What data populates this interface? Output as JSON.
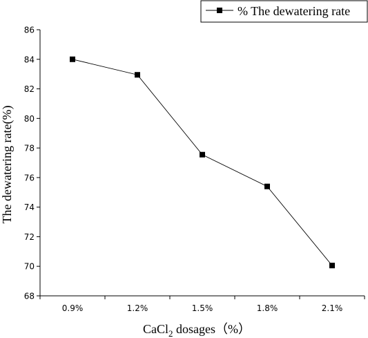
{
  "chart_data": {
    "type": "line",
    "categories": [
      "0.9%",
      "1.2%",
      "1.5%",
      "1.8%",
      "2.1%"
    ],
    "series": [
      {
        "name": "% The dewatering rate",
        "values": [
          84.0,
          82.95,
          77.55,
          75.4,
          70.05
        ]
      }
    ],
    "title": "",
    "xlabel_prefix": "CaCl",
    "xlabel_subscript": "2",
    "xlabel_suffix": " dosages（%）",
    "ylabel": "The dewatering rate(%)",
    "ylim": [
      68,
      86
    ],
    "yticks": [
      "68",
      "70",
      "72",
      "74",
      "76",
      "78",
      "80",
      "82",
      "84",
      "86"
    ],
    "legend_position": "top-right",
    "grid": false,
    "line_color": "#000000",
    "marker": "square"
  }
}
